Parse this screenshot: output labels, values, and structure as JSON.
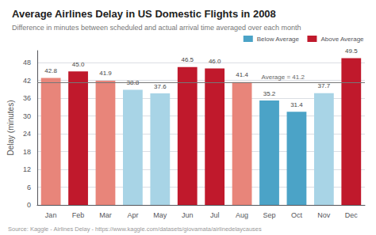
{
  "chart_data": {
    "type": "bar",
    "title": "Average Airlines Delay in US Domestic Flights in 2008",
    "subtitle": "Difference in minutes between scheduled and actual arrival time averaged over each month",
    "source": "Source: Kaggle - Airlines Delay - https://www.kaggle.com/datasets/giovamata/airlinedelaycauses",
    "ylabel": "Delay (minutes)",
    "categories": [
      "Jan",
      "Feb",
      "Mar",
      "Apr",
      "May",
      "Jun",
      "Jul",
      "Aug",
      "Sep",
      "Oct",
      "Nov",
      "Dec"
    ],
    "values": [
      42.8,
      45.0,
      41.9,
      38.8,
      37.6,
      46.5,
      46.0,
      41.4,
      35.2,
      31.4,
      37.7,
      49.5
    ],
    "value_labels": [
      "42.8",
      "45.0",
      "41.9",
      "38.8",
      "37.6",
      "46.5",
      "46.0",
      "41.4",
      "35.2",
      "31.4",
      "37.7",
      "49.5"
    ],
    "colors": [
      "#E8857A",
      "#C0192C",
      "#E8857A",
      "#A8D4E6",
      "#A8D4E6",
      "#C0192C",
      "#C0192C",
      "#E8857A",
      "#4BA3C7",
      "#4BA3C7",
      "#A8D4E6",
      "#C0192C"
    ],
    "average": 41.2,
    "average_label": "Average = 41.2",
    "legend_entries": [
      {
        "name": "Below Average",
        "color": "#4BA3C7"
      },
      {
        "name": "Above Average",
        "color": "#C0192C"
      }
    ],
    "legend": "top-right",
    "ylim": [
      0,
      52
    ],
    "yticks": [
      0,
      6,
      12,
      18,
      24,
      30,
      36,
      42,
      48
    ],
    "grid": true,
    "data_labels": true
  }
}
